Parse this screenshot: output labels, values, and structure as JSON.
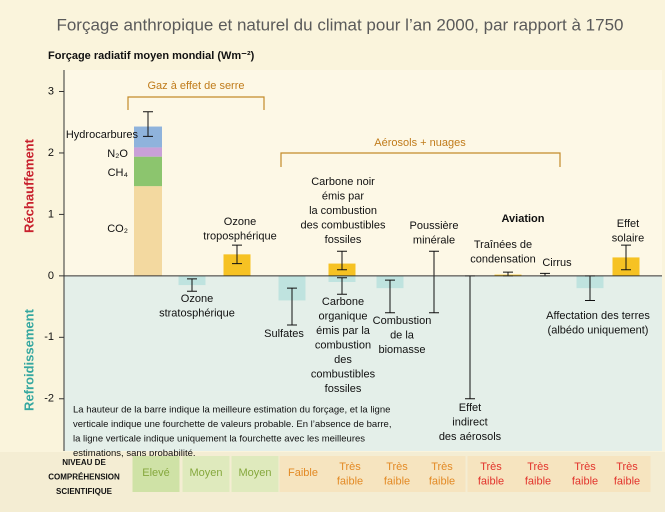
{
  "chart_data": {
    "type": "bar",
    "title": "Forçage anthropique et naturel du climat pour l’an 2000, par rapport à 1750",
    "y_label": "Forçage radiatif moyen mondial (Wm⁻²)",
    "warming_label": "Réchauffement",
    "cooling_label": "Refroidissement",
    "ylim": [
      -2.85,
      3.35
    ],
    "yticks": [
      -2,
      -1,
      0,
      1,
      2,
      3
    ],
    "groups": [
      "Gaz à effet de serre",
      "Aérosols + nuages",
      "Aviation"
    ],
    "positive_color": "#f6c223",
    "negative_color": "#bfe3df",
    "greenhouse": {
      "components": [
        {
          "name": "CO₂",
          "color": "#f3d9a0",
          "value": 1.46
        },
        {
          "name": "CH₄",
          "color": "#8cc56e",
          "value": 0.48
        },
        {
          "name": "N₂O",
          "color": "#c9a0d8",
          "value": 0.15
        },
        {
          "name": "Hydrocarbures",
          "color": "#8fb3dc",
          "value": 0.34
        }
      ],
      "range": [
        2.27,
        2.67
      ]
    },
    "forcings": [
      {
        "label": [
          "Ozone",
          "stratosphérique"
        ],
        "value": -0.15,
        "range": [
          -0.25,
          -0.05
        ]
      },
      {
        "label": [
          "Ozone",
          "troposphérique"
        ],
        "value": 0.35,
        "range": [
          0.2,
          0.5
        ]
      },
      {
        "label": [
          "Sulfates"
        ],
        "value": -0.4,
        "range": [
          -0.8,
          -0.2
        ]
      },
      {
        "label": [
          "Carbone noir",
          "émis par",
          "la  combustion",
          "des combustibles",
          "fossiles"
        ],
        "value": 0.2,
        "range": [
          0.1,
          0.4
        ]
      },
      {
        "label": [
          "Carbone",
          "organique",
          "émis par la",
          "combustion",
          "des",
          "combustibles",
          "fossiles"
        ],
        "value": -0.1,
        "range": [
          -0.3,
          -0.03
        ]
      },
      {
        "label": [
          "Combustion",
          "de la",
          "biomasse"
        ],
        "value": -0.2,
        "range": [
          -0.6,
          -0.07
        ]
      },
      {
        "label": [
          "Poussière",
          "minérale"
        ],
        "value": null,
        "range": [
          -0.6,
          0.4
        ]
      },
      {
        "label": [
          "Effet",
          "indirect",
          "des aérosols"
        ],
        "value": null,
        "range": [
          -2.0,
          0
        ]
      },
      {
        "label": [
          "Traînées de",
          "condensation"
        ],
        "value": 0.02,
        "range": [
          0,
          0.06
        ]
      },
      {
        "label": [
          "Cirrus"
        ],
        "value": null,
        "range": [
          0,
          0.04
        ]
      },
      {
        "label": [
          "Affectation des terres",
          "(albédo uniquement)"
        ],
        "value": -0.2,
        "range": [
          -0.4,
          0
        ]
      },
      {
        "label": [
          "Effet",
          "solaire"
        ],
        "value": 0.3,
        "range": [
          0.1,
          0.5
        ]
      }
    ],
    "note": [
      "La hauteur de la barre indique la meilleure estimation du forçage, et la ligne",
      "verticale indique une fourchette de valeurs probable. En l’absence de barre,",
      "la ligne verticale indique uniquement la fourchette avec les meilleures",
      "estimations, sans probabilité."
    ],
    "confidence_label": [
      "NIVEAU DE",
      "COMPRÉHENSION",
      "SCIENTIFIQUE"
    ],
    "confidence": [
      {
        "text": [
          "Elevé"
        ],
        "color": "#86a83e",
        "background": "#cfe2a6"
      },
      {
        "text": [
          "Moyen"
        ],
        "color": "#86a83e",
        "background": "#dfeabd"
      },
      {
        "text": [
          "Moyen"
        ],
        "color": "#86a83e",
        "background": "#dfeabd"
      },
      {
        "text": [
          "Faible"
        ],
        "color": "#e38a25",
        "background": "#f6e4bf"
      },
      {
        "text": [
          "Très",
          "faible"
        ],
        "color": "#e38a25",
        "background": "#f6e4bf"
      },
      {
        "text": [
          "Très",
          "faible"
        ],
        "color": "#e38a25",
        "background": "#f6e4bf"
      },
      {
        "text": [
          "Très",
          "faible"
        ],
        "color": "#e38a25",
        "background": "#f6e4bf"
      },
      {
        "text": [
          "Très",
          "faible"
        ],
        "color": "#e2332b",
        "background": "#f6e4bf"
      },
      {
        "text": [
          "Très",
          "faible"
        ],
        "color": "#e2332b",
        "background": "#f6e4bf"
      },
      {
        "text": [
          "Très",
          "faible"
        ],
        "color": "#e2332b",
        "background": "#f6e4bf"
      },
      {
        "text": [
          "Très",
          "faible"
        ],
        "color": "#e2332b",
        "background": "#f6e4bf"
      }
    ]
  }
}
